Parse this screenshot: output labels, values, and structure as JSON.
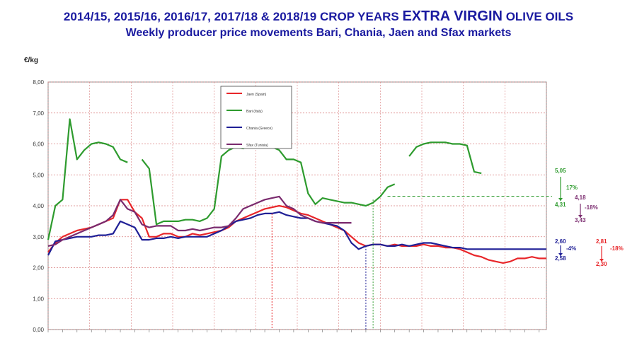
{
  "title": {
    "line1_prefix": "2014/15,  2015/16, 2016/17, 2017/18  &  2018/19 CROP YEARS ",
    "line1_emph": "EXTRA VIRGIN",
    "line1_suffix": " OLIVE OILS",
    "line2": "Weekly producer price movements Bari, Chania, Jaen and Sfax markets"
  },
  "colors": {
    "jaen": "#e8262a",
    "bari": "#2e9b2e",
    "chania": "#1f1f96",
    "sfax": "#7a2a6e",
    "grid": "#d98080",
    "title": "#1a1aa0"
  },
  "chart_data": {
    "type": "line",
    "ylabel": "€/kg",
    "ylim": [
      0,
      8
    ],
    "yticks": [
      "0,00",
      "1,00",
      "2,00",
      "3,00",
      "4,00",
      "5,00",
      "6,00",
      "7,00",
      "8,00"
    ],
    "x_count": 70,
    "legend": [
      "Jaen (Spain)",
      "Bari (Italy)",
      "Chania (Greece)",
      "Sfax (Tunisia)"
    ],
    "legend_position": "top-center",
    "series": [
      {
        "name": "Jaen (Spain)",
        "key": "jaen",
        "values": [
          2.5,
          2.8,
          3.0,
          3.1,
          3.2,
          3.25,
          3.3,
          3.4,
          3.5,
          3.6,
          4.2,
          4.2,
          3.8,
          3.6,
          3.0,
          3.0,
          3.1,
          3.1,
          3.0,
          3.0,
          3.1,
          3.05,
          3.1,
          3.15,
          3.2,
          3.3,
          3.5,
          3.6,
          3.7,
          3.8,
          3.9,
          3.95,
          4.0,
          3.95,
          3.85,
          3.75,
          3.7,
          3.6,
          3.5,
          3.4,
          3.3,
          3.2,
          3.0,
          2.8,
          2.7,
          2.75,
          2.75,
          2.7,
          2.75,
          2.7,
          2.7,
          2.7,
          2.75,
          2.7,
          2.7,
          2.65,
          2.65,
          2.6,
          2.5,
          2.4,
          2.35,
          2.25,
          2.2,
          2.15,
          2.2,
          2.3,
          2.3,
          2.35,
          2.3,
          2.3
        ]
      },
      {
        "name": "Bari (Italy)",
        "key": "bari",
        "values": [
          2.9,
          4.0,
          4.2,
          6.8,
          5.5,
          5.8,
          6.0,
          6.05,
          6.0,
          5.9,
          5.5,
          5.4,
          null,
          5.5,
          5.2,
          3.4,
          3.5,
          3.5,
          3.5,
          3.55,
          3.55,
          3.5,
          3.6,
          3.9,
          5.6,
          5.8,
          5.9,
          5.85,
          6.0,
          6.15,
          6.1,
          5.9,
          5.8,
          5.5,
          5.5,
          5.4,
          4.4,
          4.05,
          4.25,
          4.2,
          4.15,
          4.1,
          4.1,
          4.05,
          4.0,
          4.1,
          4.3,
          4.6,
          4.7,
          null,
          5.6,
          5.9,
          6.0,
          6.05,
          6.05,
          6.05,
          6.0,
          6.0,
          5.95,
          5.1,
          5.05,
          null,
          null,
          null,
          null,
          null,
          null,
          null,
          null,
          null
        ]
      },
      {
        "name": "Chania (Greece)",
        "key": "chania",
        "values": [
          2.4,
          2.85,
          2.9,
          2.95,
          3.0,
          3.0,
          3.0,
          3.05,
          3.05,
          3.1,
          3.5,
          3.4,
          3.3,
          2.9,
          2.9,
          2.95,
          2.95,
          3.0,
          2.95,
          3.0,
          3.0,
          3.0,
          3.0,
          3.1,
          3.2,
          3.35,
          3.5,
          3.55,
          3.6,
          3.7,
          3.75,
          3.75,
          3.8,
          3.7,
          3.65,
          3.6,
          3.6,
          3.5,
          3.45,
          3.4,
          3.35,
          3.2,
          2.8,
          2.6,
          2.7,
          2.75,
          2.75,
          2.7,
          2.7,
          2.75,
          2.7,
          2.75,
          2.8,
          2.8,
          2.75,
          2.7,
          2.65,
          2.65,
          2.6,
          2.6,
          2.6,
          2.6,
          2.6,
          2.6,
          2.6,
          2.6,
          2.6,
          2.6,
          2.6,
          2.6
        ]
      },
      {
        "name": "Sfax (Tunisia)",
        "key": "sfax",
        "values": [
          2.7,
          2.75,
          2.9,
          3.0,
          3.1,
          3.2,
          3.3,
          3.4,
          3.5,
          3.7,
          4.2,
          3.9,
          3.8,
          3.4,
          3.3,
          3.35,
          3.35,
          3.35,
          3.2,
          3.2,
          3.25,
          3.2,
          3.25,
          3.3,
          3.3,
          3.35,
          3.6,
          3.9,
          4.0,
          4.1,
          4.2,
          4.25,
          4.3,
          4.0,
          3.9,
          3.7,
          3.6,
          3.5,
          3.45,
          3.45,
          3.45,
          3.45,
          3.45,
          null,
          null,
          null,
          null,
          null,
          null,
          null,
          null,
          null,
          null,
          null,
          null,
          null,
          null,
          null,
          null,
          null,
          null,
          null,
          null,
          null,
          null,
          null,
          null,
          null,
          null,
          null
        ]
      }
    ],
    "annotations": [
      {
        "text": "5,05",
        "color": "bari"
      },
      {
        "text": "17%",
        "color": "bari"
      },
      {
        "text": "4,31",
        "color": "bari"
      },
      {
        "text": "4,18",
        "color": "sfax"
      },
      {
        "text": "-18%",
        "color": "sfax"
      },
      {
        "text": "3,43",
        "color": "sfax"
      },
      {
        "text": "2,60",
        "color": "chania"
      },
      {
        "text": "-4%",
        "color": "chania"
      },
      {
        "text": "2,58",
        "color": "chania"
      },
      {
        "text": "2,81",
        "color": "jaen"
      },
      {
        "text": "-18%",
        "color": "jaen"
      },
      {
        "text": "2,30",
        "color": "jaen"
      }
    ]
  }
}
